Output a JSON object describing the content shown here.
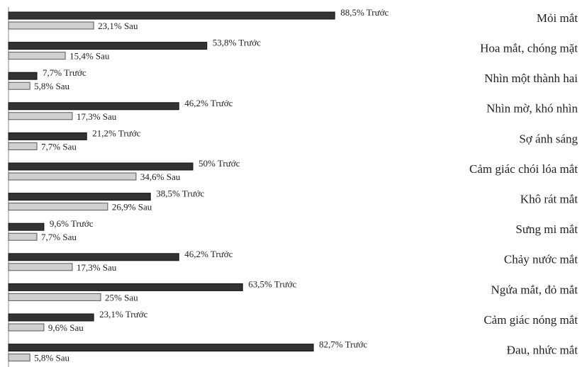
{
  "chart_data": {
    "type": "bar",
    "orientation": "horizontal",
    "categories": [
      "Mỏi mắt",
      "Hoa mắt, chóng mặt",
      "Nhìn một thành hai",
      "Nhìn mờ, khó nhìn",
      "Sợ ánh sáng",
      "Cảm giác chói lóa mắt",
      "Khô rát mắt",
      "Sưng mi mắt",
      "Chảy nước mắt",
      "Ngứa mắt, đỏ mắt",
      "Cảm giác nóng mắt",
      "Đau, nhức mắt"
    ],
    "series": [
      {
        "name": "Trước",
        "color": "#333333",
        "values": [
          88.5,
          53.8,
          7.7,
          46.2,
          21.2,
          50,
          38.5,
          9.6,
          46.2,
          63.5,
          23.1,
          82.7
        ],
        "value_labels": [
          "88,5%",
          "53,8%",
          "7,7%",
          "46,2%",
          "21,2%",
          "50%",
          "38,5%",
          "9,6%",
          "46,2%",
          "63,5%",
          "23,1%",
          "82,7%"
        ]
      },
      {
        "name": "Sau",
        "color": "#d0d0d0",
        "values": [
          23.1,
          15.4,
          5.8,
          17.3,
          7.7,
          34.6,
          26.9,
          7.7,
          17.3,
          25,
          9.6,
          5.8
        ],
        "value_labels": [
          "23,1%",
          "15,4%",
          "5,8%",
          "17,3%",
          "7,7%",
          "34,6%",
          "26,9%",
          "7,7%",
          "17,3%",
          "25%",
          "9,6%",
          "5,8%"
        ]
      }
    ],
    "xlim": [
      0,
      100
    ]
  }
}
